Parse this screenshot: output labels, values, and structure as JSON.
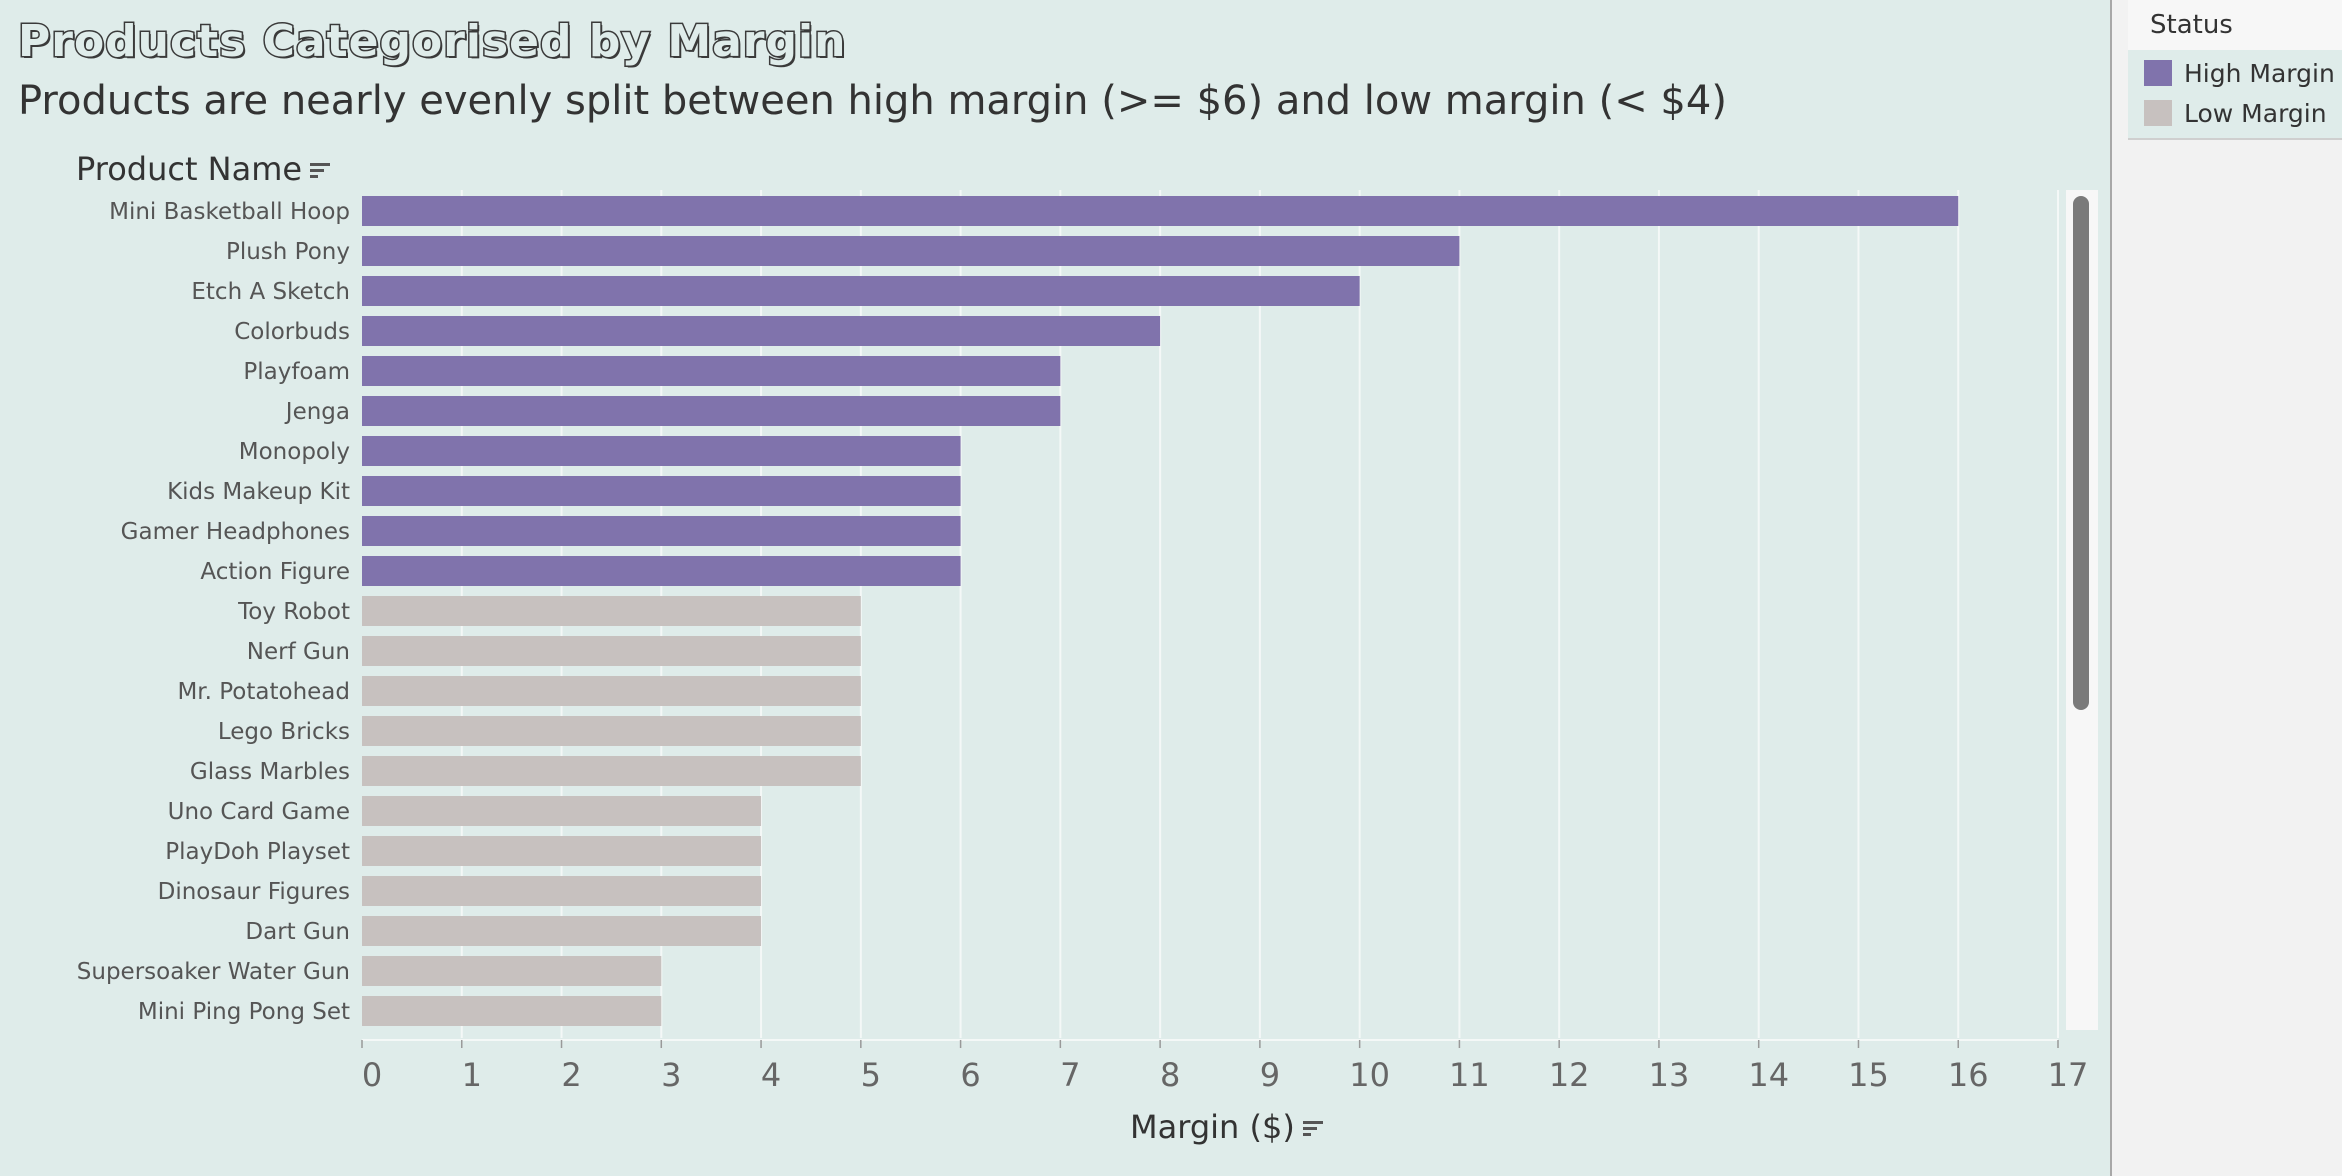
{
  "title": "Products Categorised by Margin",
  "subtitle": "Products are nearly evenly split between high margin (>= $6) and low margin (< $4)",
  "rows_header": "Product Name",
  "legend": {
    "title": "Status",
    "items": [
      {
        "label": "High Margin",
        "color": "#8073ac"
      },
      {
        "label": "Low Margin",
        "color": "#c7c1bf"
      }
    ]
  },
  "colors": {
    "background": "#dfecea",
    "high": "#8073ac",
    "low": "#c7c1bf",
    "grid": "#f4f8f7",
    "text": "#333333"
  },
  "chart_data": {
    "type": "bar",
    "orientation": "horizontal",
    "title": "Products Categorised by Margin",
    "subtitle": "Products are nearly evenly split between high margin (>= $6) and low margin (< $4)",
    "xlabel": "Margin ($)",
    "ylabel": "Product Name",
    "xlim": [
      0,
      17
    ],
    "xticks": [
      0,
      1,
      2,
      3,
      4,
      5,
      6,
      7,
      8,
      9,
      10,
      11,
      12,
      13,
      14,
      15,
      16,
      17
    ],
    "grid": true,
    "legend_position": "top-right",
    "categories": [
      "Mini Basketball Hoop",
      "Plush Pony",
      "Etch A Sketch",
      "Colorbuds",
      "Playfoam",
      "Jenga",
      "Monopoly",
      "Kids Makeup Kit",
      "Gamer Headphones",
      "Action Figure",
      "Toy Robot",
      "Nerf Gun",
      "Mr. Potatohead",
      "Lego Bricks",
      "Glass Marbles",
      "Uno Card Game",
      "PlayDoh Playset",
      "Dinosaur Figures",
      "Dart Gun",
      "Supersoaker Water Gun",
      "Mini Ping Pong Set"
    ],
    "values": [
      16,
      11,
      10,
      8,
      7,
      7,
      6,
      6,
      6,
      6,
      5,
      5,
      5,
      5,
      5,
      4,
      4,
      4,
      4,
      3,
      3
    ],
    "status": [
      "High Margin",
      "High Margin",
      "High Margin",
      "High Margin",
      "High Margin",
      "High Margin",
      "High Margin",
      "High Margin",
      "High Margin",
      "High Margin",
      "Low Margin",
      "Low Margin",
      "Low Margin",
      "Low Margin",
      "Low Margin",
      "Low Margin",
      "Low Margin",
      "Low Margin",
      "Low Margin",
      "Low Margin",
      "Low Margin"
    ]
  }
}
